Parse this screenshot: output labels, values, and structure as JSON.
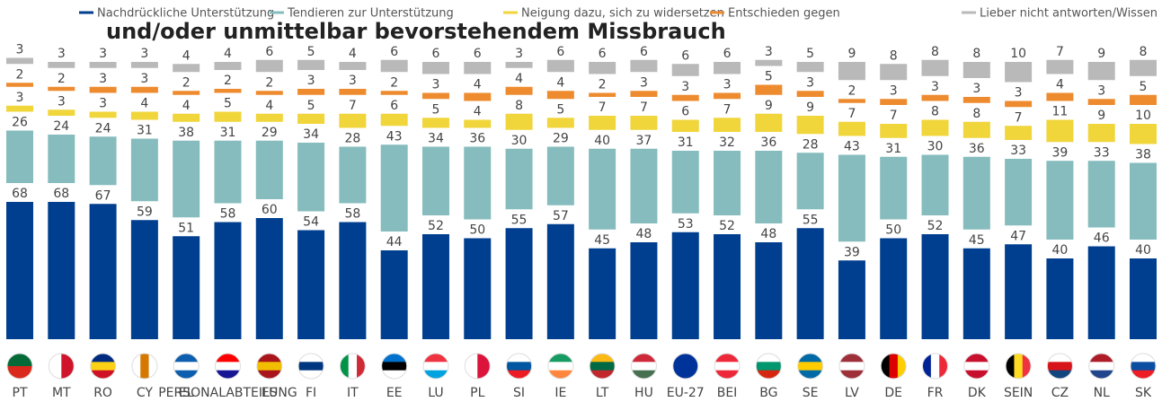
{
  "chart_data": {
    "type": "stacked-bar",
    "title": "und/oder unmittelbar bevorstehendem Missbrauch",
    "categories": [
      "PT",
      "MT",
      "RO",
      "CY",
      "EL",
      "PERSONALABTEILUNG",
      "ES",
      "FI",
      "IT",
      "EE",
      "LU",
      "PL",
      "SI",
      "IE",
      "LT",
      "HU",
      "EU-27",
      "BEI",
      "BG",
      "SE",
      "LV",
      "DE",
      "FR",
      "DK",
      "SEIN",
      "CZ",
      "NL",
      "SK"
    ],
    "series": [
      {
        "name": "Nachdrückliche Unterstützung",
        "color": "#003f8f",
        "values": [
          68,
          68,
          67,
          59,
          51,
          58,
          60,
          54,
          58,
          44,
          52,
          50,
          55,
          57,
          45,
          48,
          53,
          52,
          48,
          55,
          39,
          50,
          52,
          45,
          47,
          40,
          46,
          40
        ]
      },
      {
        "name": "Tendieren zur Unterstützung",
        "color": "#86bcbd",
        "values": [
          26,
          24,
          24,
          31,
          38,
          31,
          29,
          34,
          28,
          43,
          34,
          36,
          30,
          29,
          40,
          37,
          31,
          32,
          36,
          28,
          43,
          31,
          30,
          36,
          33,
          39,
          33,
          38
        ]
      },
      {
        "name": "Neigung dazu, sich zu widersetzen",
        "color": "#f0d53b",
        "values": [
          3,
          3,
          3,
          4,
          4,
          5,
          4,
          5,
          7,
          6,
          5,
          4,
          8,
          5,
          7,
          7,
          6,
          7,
          9,
          9,
          7,
          7,
          8,
          8,
          7,
          11,
          9,
          10
        ]
      },
      {
        "name": "Entschieden gegen",
        "color": "#ee8b2f",
        "values": [
          2,
          2,
          3,
          3,
          2,
          2,
          2,
          3,
          3,
          2,
          3,
          4,
          4,
          4,
          2,
          3,
          3,
          3,
          5,
          3,
          2,
          3,
          3,
          3,
          3,
          4,
          3,
          5
        ]
      },
      {
        "name": "Lieber nicht antworten/Wissen Sie nicht",
        "color": "#b9b9b9",
        "values": [
          3,
          3,
          3,
          3,
          4,
          4,
          6,
          5,
          4,
          6,
          6,
          6,
          3,
          6,
          6,
          6,
          6,
          6,
          3,
          5,
          9,
          8,
          8,
          8,
          10,
          7,
          9,
          8
        ]
      }
    ]
  }
}
